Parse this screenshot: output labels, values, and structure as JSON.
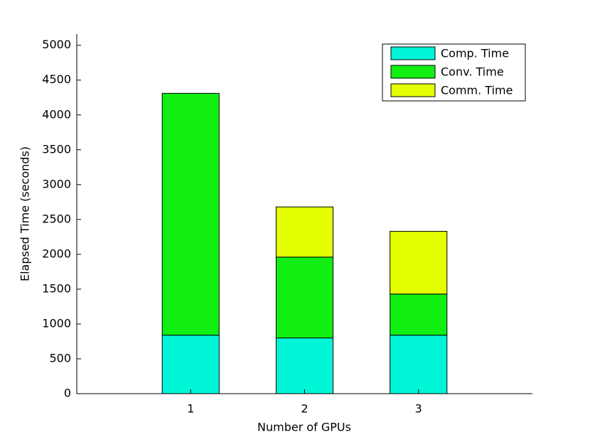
{
  "chart_data": {
    "type": "stacked_bar",
    "x_label": "Number of GPUs",
    "y_label": "Elapsed Time (seconds)",
    "x": [
      1,
      2,
      3
    ],
    "series": [
      {
        "name": "Comp. Time",
        "color": "#00f5d6",
        "values": [
          840,
          800,
          840
        ]
      },
      {
        "name": "Conv. Time",
        "color": "#11ee11",
        "values": [
          3470,
          1160,
          590
        ]
      },
      {
        "name": "Comm. Time",
        "color": "#e3ff00",
        "values": [
          0,
          720,
          900
        ]
      }
    ],
    "bar_width": 0.5,
    "xlim": [
      0,
      4
    ],
    "xticks": [
      1,
      2,
      3
    ],
    "ylim": [
      0,
      5160
    ],
    "yticks": [
      0,
      500,
      1000,
      1500,
      2000,
      2500,
      3000,
      3500,
      4000,
      4500,
      5000
    ],
    "legend": "top-right"
  }
}
